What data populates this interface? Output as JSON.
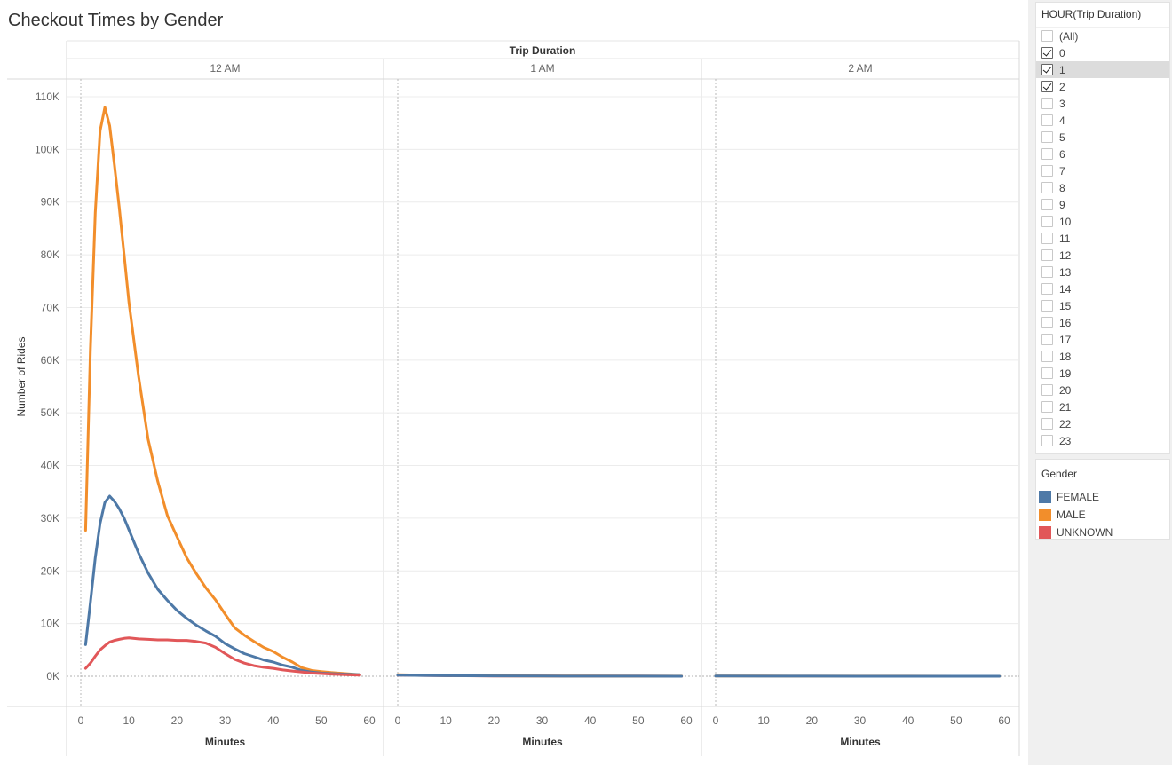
{
  "title": "Checkout Times by Gender",
  "chart_data": {
    "type": "line",
    "header": "Trip Duration",
    "panels": [
      "12 AM",
      "1 AM",
      "2 AM"
    ],
    "xlabel": "Minutes",
    "ylabel": "Number of Rides",
    "xlim": [
      0,
      60
    ],
    "ylim": [
      0,
      110000
    ],
    "xticks": [
      "0",
      "10",
      "20",
      "30",
      "40",
      "50",
      "60"
    ],
    "yticks": [
      {
        "value": 0,
        "label": "0K"
      },
      {
        "value": 10000,
        "label": "10K"
      },
      {
        "value": 20000,
        "label": "20K"
      },
      {
        "value": 30000,
        "label": "30K"
      },
      {
        "value": 40000,
        "label": "40K"
      },
      {
        "value": 50000,
        "label": "50K"
      },
      {
        "value": 60000,
        "label": "60K"
      },
      {
        "value": 70000,
        "label": "70K"
      },
      {
        "value": 80000,
        "label": "80K"
      },
      {
        "value": 90000,
        "label": "90K"
      },
      {
        "value": 100000,
        "label": "100K"
      },
      {
        "value": 110000,
        "label": "110K"
      }
    ],
    "grid": true,
    "legend": "right",
    "series": [
      {
        "name": "MALE",
        "color": "#f28e2b",
        "panel": 0,
        "x": [
          1,
          2,
          3,
          4,
          5,
          6,
          7,
          8,
          9,
          10,
          12,
          14,
          16,
          18,
          20,
          22,
          24,
          26,
          28,
          30,
          32,
          34,
          36,
          38,
          40,
          42,
          44,
          46,
          48,
          50,
          52,
          55,
          58
        ],
        "y": [
          27700,
          62000,
          88000,
          103500,
          108000,
          104500,
          97000,
          89000,
          80000,
          71000,
          57000,
          45000,
          37000,
          30500,
          26500,
          22500,
          19500,
          16800,
          14500,
          11800,
          9200,
          7800,
          6600,
          5500,
          4700,
          3600,
          2700,
          1600,
          1100,
          900,
          700,
          500,
          300
        ]
      },
      {
        "name": "FEMALE",
        "color": "#4e79a7",
        "panel": 0,
        "x": [
          1,
          2,
          3,
          4,
          5,
          6,
          7,
          8,
          9,
          10,
          12,
          14,
          16,
          18,
          20,
          22,
          24,
          26,
          28,
          30,
          32,
          34,
          36,
          38,
          40,
          42,
          44,
          46,
          48,
          50,
          52,
          55,
          58
        ],
        "y": [
          6000,
          14000,
          22500,
          29000,
          33000,
          34200,
          33200,
          31800,
          30000,
          27800,
          23400,
          19600,
          16500,
          14400,
          12500,
          11000,
          9700,
          8600,
          7600,
          6200,
          5200,
          4300,
          3700,
          3100,
          2700,
          2100,
          1700,
          1100,
          800,
          600,
          500,
          400,
          300
        ]
      },
      {
        "name": "UNKNOWN",
        "color": "#e15759",
        "panel": 0,
        "x": [
          1,
          2,
          3,
          4,
          5,
          6,
          7,
          8,
          9,
          10,
          12,
          14,
          16,
          18,
          20,
          22,
          24,
          26,
          28,
          30,
          32,
          34,
          36,
          38,
          40,
          42,
          44,
          46,
          48,
          50,
          52,
          55,
          58
        ],
        "y": [
          1500,
          2500,
          3800,
          5000,
          5800,
          6500,
          6800,
          7000,
          7200,
          7300,
          7100,
          7000,
          6900,
          6900,
          6800,
          6800,
          6600,
          6300,
          5500,
          4300,
          3200,
          2500,
          2000,
          1700,
          1500,
          1200,
          1000,
          800,
          600,
          500,
          400,
          300,
          200
        ]
      },
      {
        "name": "UNKNOWN",
        "color": "#e15759",
        "panel": 1,
        "x": [
          0,
          10,
          20,
          30,
          40,
          50,
          59
        ],
        "y": [
          200,
          100,
          50,
          30,
          20,
          10,
          5
        ]
      },
      {
        "name": "MALE",
        "color": "#f28e2b",
        "panel": 1,
        "x": [
          0,
          5,
          10,
          20,
          30,
          40,
          50,
          59
        ],
        "y": [
          300,
          200,
          150,
          80,
          50,
          30,
          20,
          10
        ]
      },
      {
        "name": "FEMALE",
        "color": "#4e79a7",
        "panel": 1,
        "x": [
          0,
          5,
          10,
          20,
          30,
          40,
          50,
          59
        ],
        "y": [
          200,
          150,
          100,
          60,
          40,
          20,
          10,
          5
        ]
      },
      {
        "name": "MALE",
        "color": "#f28e2b",
        "panel": 2,
        "x": [
          0,
          10,
          20,
          30,
          40,
          50,
          59
        ],
        "y": [
          50,
          30,
          20,
          10,
          10,
          5,
          5
        ]
      },
      {
        "name": "FEMALE",
        "color": "#4e79a7",
        "panel": 2,
        "x": [
          0,
          10,
          20,
          30,
          40,
          50,
          59
        ],
        "y": [
          30,
          20,
          10,
          5,
          5,
          5,
          5
        ]
      }
    ]
  },
  "filter": {
    "title": "HOUR(Trip Duration)",
    "items": [
      {
        "label": "(All)",
        "checked": false
      },
      {
        "label": "0",
        "checked": true
      },
      {
        "label": "1",
        "checked": true,
        "highlight": true
      },
      {
        "label": "2",
        "checked": true
      },
      {
        "label": "3",
        "checked": false
      },
      {
        "label": "4",
        "checked": false
      },
      {
        "label": "5",
        "checked": false
      },
      {
        "label": "6",
        "checked": false
      },
      {
        "label": "7",
        "checked": false
      },
      {
        "label": "8",
        "checked": false
      },
      {
        "label": "9",
        "checked": false
      },
      {
        "label": "10",
        "checked": false
      },
      {
        "label": "11",
        "checked": false
      },
      {
        "label": "12",
        "checked": false
      },
      {
        "label": "13",
        "checked": false
      },
      {
        "label": "14",
        "checked": false
      },
      {
        "label": "15",
        "checked": false
      },
      {
        "label": "16",
        "checked": false
      },
      {
        "label": "17",
        "checked": false
      },
      {
        "label": "18",
        "checked": false
      },
      {
        "label": "19",
        "checked": false
      },
      {
        "label": "20",
        "checked": false
      },
      {
        "label": "21",
        "checked": false
      },
      {
        "label": "22",
        "checked": false
      },
      {
        "label": "23",
        "checked": false
      }
    ]
  },
  "legend": {
    "title": "Gender",
    "items": [
      {
        "label": "FEMALE",
        "color": "#4e79a7"
      },
      {
        "label": "MALE",
        "color": "#f28e2b"
      },
      {
        "label": "UNKNOWN",
        "color": "#e15759"
      }
    ]
  }
}
